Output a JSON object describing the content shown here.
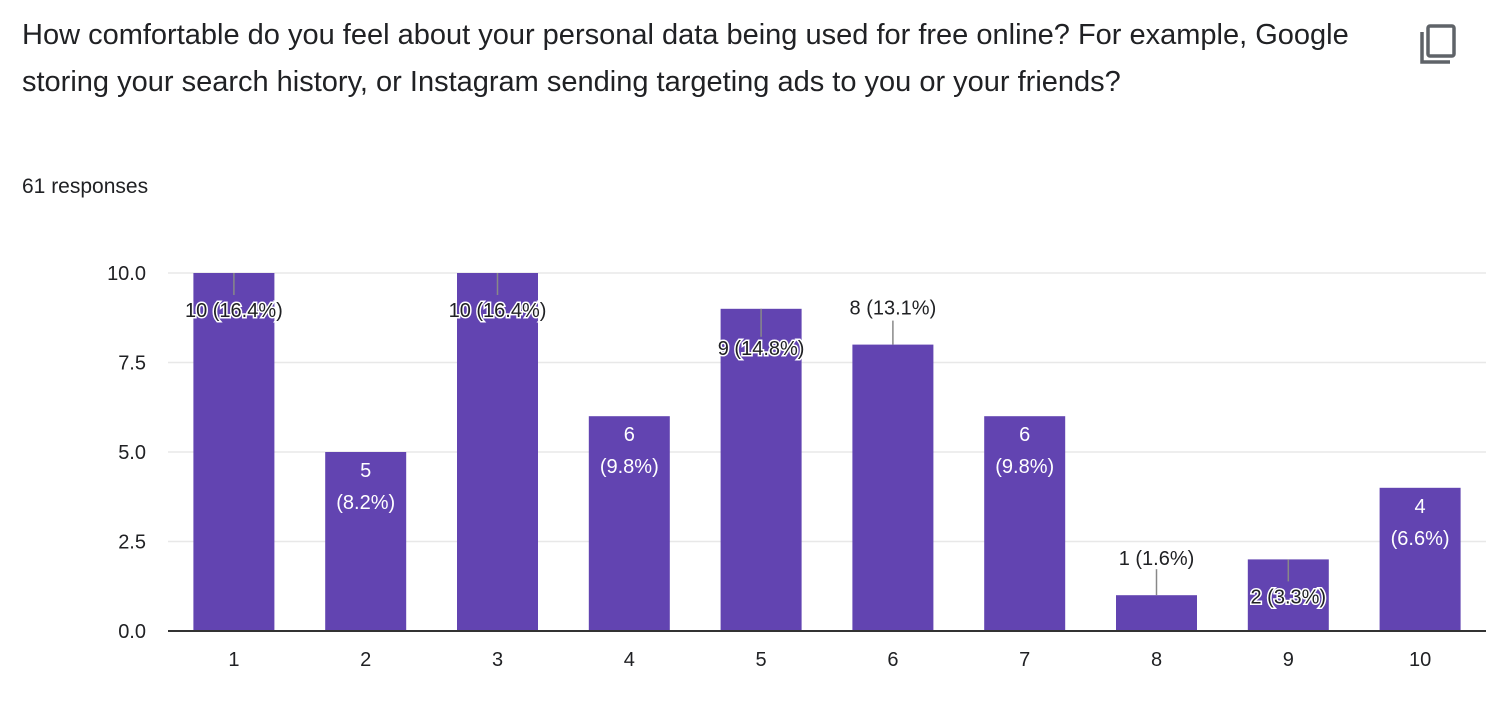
{
  "question": {
    "title": "How comfortable do you feel about your personal data being used for free online? For example, Google storing your search history, or Instagram sending targeting ads to you or your friends?",
    "responses": "61 responses"
  },
  "icons": {
    "copy": "copy-icon"
  },
  "colors": {
    "bar": "#6244b1",
    "grid": "#e8e8e8",
    "axis": "#333333",
    "text": "#202124",
    "label_inside": "#ffffff"
  },
  "chart_data": {
    "type": "bar",
    "categories": [
      "1",
      "2",
      "3",
      "4",
      "5",
      "6",
      "7",
      "8",
      "9",
      "10"
    ],
    "values": [
      10,
      5,
      10,
      6,
      9,
      8,
      6,
      1,
      2,
      4
    ],
    "data_labels": [
      "10 (16.4%)",
      "5 (8.2%)",
      "10 (16.4%)",
      "6 (9.8%)",
      "9 (14.8%)",
      "8 (13.1%)",
      "6 (9.8%)",
      "1 (1.6%)",
      "2 (3.3%)",
      "4 (6.6%)"
    ],
    "title": "",
    "xlabel": "",
    "ylabel": "",
    "ylim": [
      0,
      10
    ],
    "yticks": [
      "0.0",
      "2.5",
      "5.0",
      "7.5",
      "10.0"
    ],
    "grid": true,
    "legend": "none"
  }
}
